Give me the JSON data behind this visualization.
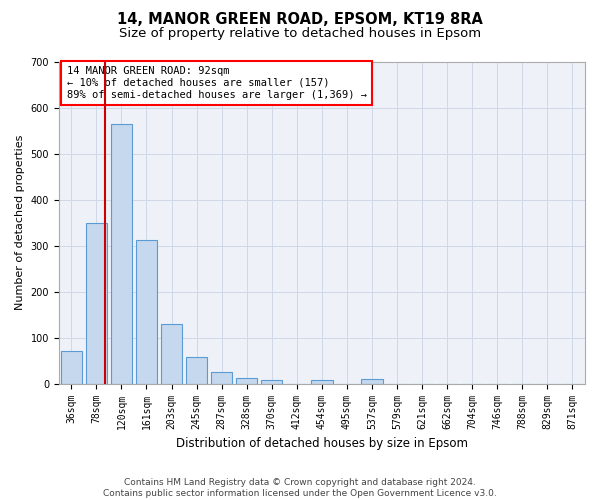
{
  "title1": "14, MANOR GREEN ROAD, EPSOM, KT19 8RA",
  "title2": "Size of property relative to detached houses in Epsom",
  "xlabel": "Distribution of detached houses by size in Epsom",
  "ylabel": "Number of detached properties",
  "categories": [
    "36sqm",
    "78sqm",
    "120sqm",
    "161sqm",
    "203sqm",
    "245sqm",
    "287sqm",
    "328sqm",
    "370sqm",
    "412sqm",
    "454sqm",
    "495sqm",
    "537sqm",
    "579sqm",
    "621sqm",
    "662sqm",
    "704sqm",
    "746sqm",
    "788sqm",
    "829sqm",
    "871sqm"
  ],
  "values": [
    70,
    350,
    565,
    312,
    130,
    57,
    25,
    13,
    7,
    0,
    7,
    0,
    10,
    0,
    0,
    0,
    0,
    0,
    0,
    0,
    0
  ],
  "bar_color": "#c5d8ed",
  "bar_edge_color": "#5b9bd5",
  "vline_color": "#cc0000",
  "annotation_box_text_line1": "14 MANOR GREEN ROAD: 92sqm",
  "annotation_box_text_line2": "← 10% of detached houses are smaller (157)",
  "annotation_box_text_line3": "89% of semi-detached houses are larger (1,369) →",
  "ylim": [
    0,
    700
  ],
  "yticks": [
    0,
    100,
    200,
    300,
    400,
    500,
    600,
    700
  ],
  "grid_color": "#d0d8e8",
  "bg_color": "#eef2f8",
  "footer1": "Contains HM Land Registry data © Crown copyright and database right 2024.",
  "footer2": "Contains public sector information licensed under the Open Government Licence v3.0.",
  "title1_fontsize": 10.5,
  "title2_fontsize": 9.5,
  "xlabel_fontsize": 8.5,
  "ylabel_fontsize": 8,
  "tick_fontsize": 7,
  "annotation_fontsize": 7.5,
  "footer_fontsize": 6.5
}
